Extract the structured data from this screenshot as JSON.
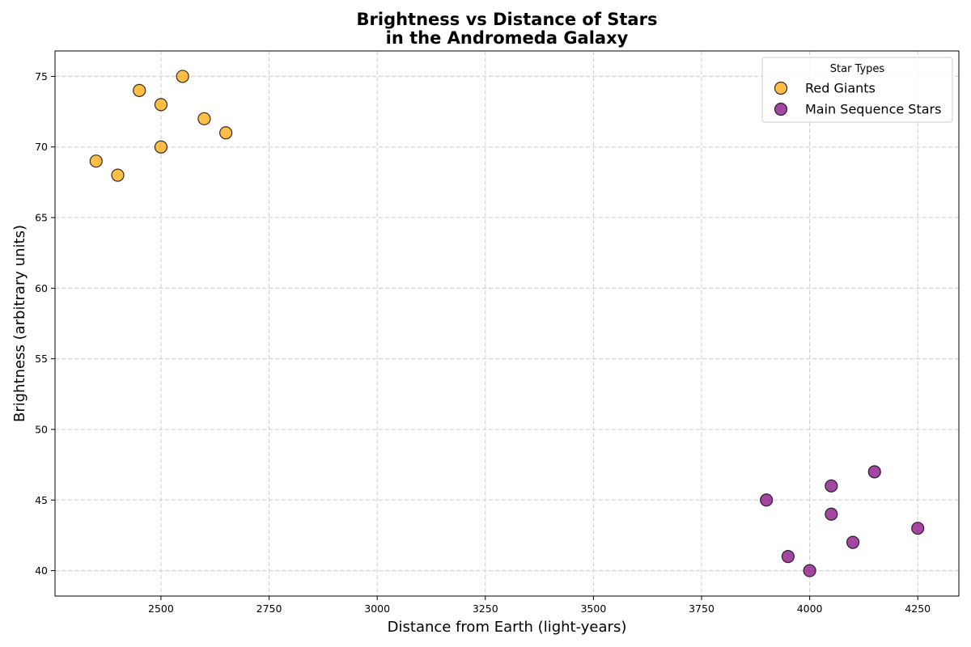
{
  "chart_data": {
    "type": "scatter",
    "title": "Brightness vs Distance of Stars\nin the Andromeda Galaxy",
    "xlabel": "Distance from Earth (light-years)",
    "ylabel": "Brightness (arbitrary units)",
    "xlim": [
      2255,
      4345
    ],
    "ylim": [
      38.2,
      76.8
    ],
    "xticks": [
      2500,
      2750,
      3000,
      3250,
      3500,
      3750,
      4000,
      4250
    ],
    "yticks": [
      40,
      45,
      50,
      55,
      60,
      65,
      70,
      75
    ],
    "grid": true,
    "legend": {
      "title": "Star Types",
      "position": "top-right"
    },
    "series": [
      {
        "name": "Red Giants",
        "color": "#ffa500",
        "points": [
          {
            "x": 2350,
            "y": 69
          },
          {
            "x": 2400,
            "y": 68
          },
          {
            "x": 2450,
            "y": 74
          },
          {
            "x": 2500,
            "y": 73
          },
          {
            "x": 2500,
            "y": 70
          },
          {
            "x": 2550,
            "y": 75
          },
          {
            "x": 2600,
            "y": 72
          },
          {
            "x": 2650,
            "y": 71
          }
        ]
      },
      {
        "name": "Main Sequence Stars",
        "color": "#800080",
        "points": [
          {
            "x": 3900,
            "y": 45
          },
          {
            "x": 3950,
            "y": 41
          },
          {
            "x": 4000,
            "y": 40
          },
          {
            "x": 4050,
            "y": 46
          },
          {
            "x": 4050,
            "y": 44
          },
          {
            "x": 4100,
            "y": 42
          },
          {
            "x": 4150,
            "y": 47
          },
          {
            "x": 4250,
            "y": 43
          }
        ]
      }
    ]
  }
}
